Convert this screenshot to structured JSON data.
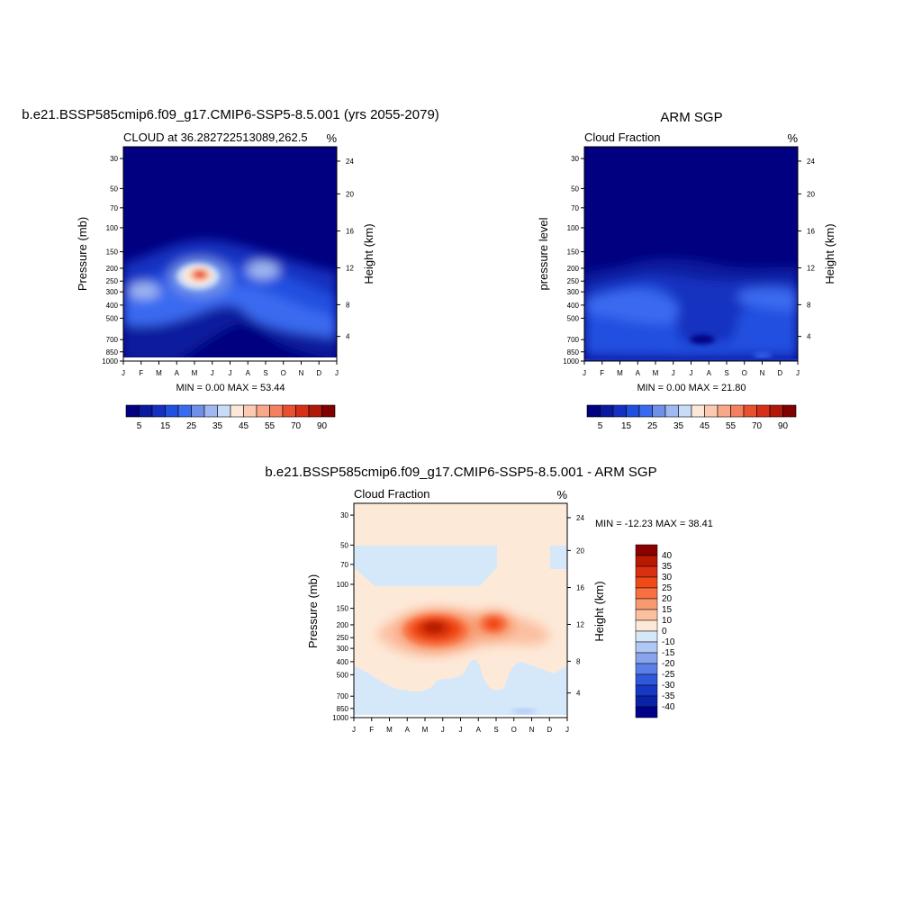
{
  "panels": [
    {
      "title": "b.e21.BSSP585cmip6.f09_g17.CMIP6-SSP5-8.5.001 (yrs 2055-2079)",
      "left_label": "CLOUD at 36.282722513089,262.5",
      "right_label": "%",
      "ylabel": "Pressure (mb)",
      "y2label": "Height (km)",
      "minmax": "MIN =   0.00 MAX =  53.44"
    },
    {
      "title": "ARM SGP",
      "left_label": "Cloud Fraction",
      "right_label": "%",
      "ylabel": "pressure level",
      "y2label": "Height (km)",
      "minmax": "MIN =   0.00 MAX =  21.80"
    },
    {
      "title": "b.e21.BSSP585cmip6.f09_g17.CMIP6-SSP5-8.5.001 - ARM SGP",
      "left_label": "Cloud Fraction",
      "right_label": "%",
      "ylabel": "Pressure (mb)",
      "y2label": "Height (km)",
      "minmax": "MIN = -12.23 MAX =  38.41"
    }
  ],
  "chart_data": [
    {
      "type": "heatmap",
      "title": "b.e21.BSSP585cmip6.f09_g17.CMIP6-SSP5-8.5.001 (yrs 2055-2079)",
      "subtitle": "CLOUD at 36.282722513089,262.5",
      "units": "%",
      "xlabel": "",
      "ylabel": "Pressure (mb)",
      "y2label": "Height (km)",
      "x_ticks": [
        "J",
        "F",
        "M",
        "A",
        "M",
        "J",
        "J",
        "A",
        "S",
        "O",
        "N",
        "D",
        "J"
      ],
      "y_ticks": [
        "30",
        "50",
        "70",
        "100",
        "150",
        "200",
        "250",
        "300",
        "400",
        "500",
        "700",
        "850",
        "1000"
      ],
      "y2_ticks": [
        "24",
        "20",
        "16",
        "12",
        "8",
        "4"
      ],
      "levels": [
        5,
        10,
        15,
        20,
        25,
        30,
        35,
        40,
        45,
        50,
        55,
        60,
        70,
        80,
        90
      ],
      "colorbar_labels": [
        "5",
        "15",
        "25",
        "35",
        "45",
        "55",
        "70",
        "90"
      ],
      "min": 0.0,
      "max": 53.44,
      "cells": [
        {
          "month": "Jan",
          "pressure": 250,
          "value": 22
        },
        {
          "month": "Feb",
          "pressure": 300,
          "value": 28
        },
        {
          "month": "Mar",
          "pressure": 250,
          "value": 30
        },
        {
          "month": "May",
          "pressure": 200,
          "value": 53.44
        },
        {
          "month": "Aug",
          "pressure": 200,
          "value": 32
        },
        {
          "month": "Jul",
          "pressure": 700,
          "value": 2
        },
        {
          "month": "Jan",
          "pressure": 50,
          "value": 0
        }
      ]
    },
    {
      "type": "heatmap",
      "title": "ARM SGP",
      "subtitle": "Cloud Fraction",
      "units": "%",
      "xlabel": "",
      "ylabel": "pressure level",
      "y2label": "Height (km)",
      "x_ticks": [
        "J",
        "F",
        "M",
        "A",
        "M",
        "J",
        "J",
        "A",
        "S",
        "O",
        "N",
        "D",
        "J"
      ],
      "y_ticks": [
        "30",
        "50",
        "70",
        "100",
        "150",
        "200",
        "250",
        "300",
        "400",
        "500",
        "700",
        "850",
        "1000"
      ],
      "y2_ticks": [
        "24",
        "20",
        "16",
        "12",
        "8",
        "4"
      ],
      "levels": [
        5,
        10,
        15,
        20,
        25,
        30,
        35,
        40,
        45,
        50,
        55,
        60,
        70,
        80,
        90
      ],
      "colorbar_labels": [
        "5",
        "15",
        "25",
        "35",
        "45",
        "55",
        "70",
        "90"
      ],
      "min": 0.0,
      "max": 21.8,
      "cells": [
        {
          "month": "Feb",
          "pressure": 300,
          "value": 21.8
        },
        {
          "month": "Nov",
          "pressure": 300,
          "value": 20
        },
        {
          "month": "Jul",
          "pressure": 700,
          "value": 2
        },
        {
          "month": "Jun",
          "pressure": 400,
          "value": 12
        },
        {
          "month": "Jan",
          "pressure": 50,
          "value": 0
        }
      ]
    },
    {
      "type": "heatmap",
      "title": "b.e21.BSSP585cmip6.f09_g17.CMIP6-SSP5-8.5.001 - ARM SGP",
      "subtitle": "Cloud Fraction",
      "units": "%",
      "xlabel": "",
      "ylabel": "Pressure (mb)",
      "y2label": "Height (km)",
      "x_ticks": [
        "J",
        "F",
        "M",
        "A",
        "M",
        "J",
        "J",
        "A",
        "S",
        "O",
        "N",
        "D",
        "J"
      ],
      "y_ticks": [
        "30",
        "50",
        "70",
        "100",
        "150",
        "200",
        "250",
        "300",
        "400",
        "500",
        "700",
        "850",
        "1000"
      ],
      "y2_ticks": [
        "24",
        "20",
        "16",
        "12",
        "8",
        "4"
      ],
      "levels": [
        -40,
        -35,
        -30,
        -25,
        -20,
        -15,
        -10,
        0,
        10,
        15,
        20,
        25,
        30,
        35,
        40
      ],
      "colorbar_labels": [
        "40",
        "35",
        "30",
        "25",
        "20",
        "15",
        "10",
        "0",
        "-10",
        "-15",
        "-20",
        "-25",
        "-30",
        "-35",
        "-40"
      ],
      "min": -12.23,
      "max": 38.41,
      "cells": [
        {
          "month": "May",
          "pressure": 200,
          "value": 38.41
        },
        {
          "month": "Aug",
          "pressure": 200,
          "value": 28
        },
        {
          "month": "Mar",
          "pressure": 70,
          "value": -5
        },
        {
          "month": "Oct",
          "pressure": 900,
          "value": -12.23
        },
        {
          "month": "Jan",
          "pressure": 30,
          "value": 3
        }
      ]
    }
  ],
  "colors": {
    "seq": [
      "#000080",
      "#0a1a9e",
      "#1530c0",
      "#2050e0",
      "#3a6af0",
      "#7090e8",
      "#a0b8f0",
      "#c8dcf8",
      "#fde8d8",
      "#fccab2",
      "#f8a888",
      "#f48060",
      "#e85030",
      "#d83018",
      "#b01808",
      "#800000"
    ],
    "div": [
      "#8b0000",
      "#b81a00",
      "#d83010",
      "#f04a18",
      "#f87040",
      "#f89a70",
      "#fbc0a0",
      "#fde9d8",
      "#d4e8fa",
      "#b0c8f4",
      "#88a4ec",
      "#5a80e8",
      "#3058dc",
      "#1638c4",
      "#0a22a8",
      "#000088"
    ],
    "band_red": "#fde9d8",
    "band_blue": "#d4e8fa",
    "band_blue2": "#b0c8f4"
  }
}
